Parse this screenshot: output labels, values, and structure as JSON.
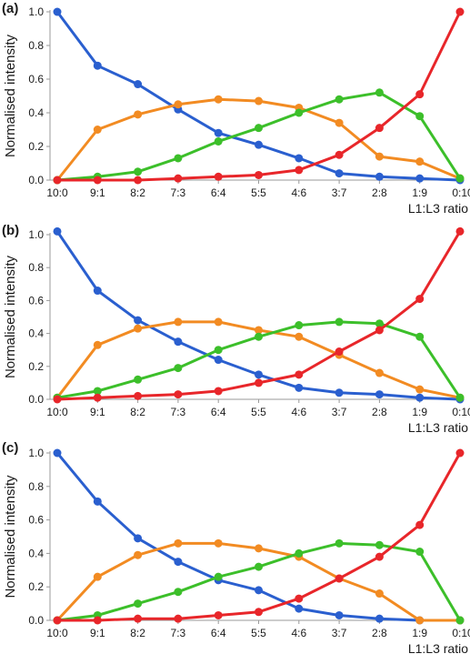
{
  "colors": {
    "series": [
      "#2a5fcf",
      "#f28b22",
      "#3cbf2a",
      "#e8262a"
    ],
    "axis": "#9a9a9a"
  },
  "chart_data": [
    {
      "type": "line",
      "panel_label": "(a)",
      "xlabel": "L1:L3 ratio",
      "ylabel": "Normalised intensity",
      "x": [
        "10:0",
        "9:1",
        "8:2",
        "7:3",
        "6:4",
        "5:5",
        "4:6",
        "3:7",
        "2:8",
        "1:9",
        "0:10"
      ],
      "yticks": [
        "0.0",
        "0.2",
        "0.4",
        "0.6",
        "0.8",
        "1.0"
      ],
      "ylim": [
        0,
        1.0
      ],
      "grid": false,
      "series": [
        {
          "values": [
            1.0,
            0.68,
            0.57,
            0.42,
            0.28,
            0.21,
            0.13,
            0.04,
            0.02,
            0.01,
            0.0
          ]
        },
        {
          "values": [
            0.0,
            0.3,
            0.39,
            0.45,
            0.48,
            0.47,
            0.43,
            0.34,
            0.14,
            0.11,
            0.01
          ]
        },
        {
          "values": [
            0.0,
            0.02,
            0.05,
            0.13,
            0.23,
            0.31,
            0.4,
            0.48,
            0.52,
            0.38,
            0.01
          ]
        },
        {
          "values": [
            0.0,
            0.0,
            0.0,
            0.01,
            0.02,
            0.03,
            0.06,
            0.15,
            0.31,
            0.51,
            1.0
          ]
        }
      ]
    },
    {
      "type": "line",
      "panel_label": "(b)",
      "xlabel": "L1:L3 ratio",
      "ylabel": "Normalised intensity",
      "x": [
        "10:0",
        "9:1",
        "8:2",
        "7:3",
        "6:4",
        "5:5",
        "4:6",
        "3:7",
        "2:8",
        "1:9",
        "0:10"
      ],
      "yticks": [
        "0.0",
        "0.2",
        "0.4",
        "0.6",
        "0.8",
        "1.0"
      ],
      "ylim": [
        0,
        1.0
      ],
      "grid": false,
      "series": [
        {
          "values": [
            1.02,
            0.66,
            0.48,
            0.35,
            0.24,
            0.15,
            0.07,
            0.04,
            0.03,
            0.01,
            0.0
          ]
        },
        {
          "values": [
            0.01,
            0.33,
            0.43,
            0.47,
            0.47,
            0.42,
            0.38,
            0.27,
            0.16,
            0.06,
            0.01
          ]
        },
        {
          "values": [
            0.01,
            0.05,
            0.12,
            0.19,
            0.3,
            0.38,
            0.45,
            0.47,
            0.46,
            0.38,
            0.01
          ]
        },
        {
          "values": [
            0.0,
            0.01,
            0.02,
            0.03,
            0.05,
            0.1,
            0.15,
            0.29,
            0.42,
            0.61,
            1.02
          ]
        }
      ]
    },
    {
      "type": "line",
      "panel_label": "(c)",
      "xlabel": "L1:L3 ratio",
      "ylabel": "Normalised intensity",
      "x": [
        "10:0",
        "9:1",
        "8:2",
        "7:3",
        "6:4",
        "5:5",
        "4:6",
        "3:7",
        "2:8",
        "1:9",
        "0:10"
      ],
      "yticks": [
        "0.0",
        "0.2",
        "0.4",
        "0.6",
        "0.8",
        "1.0"
      ],
      "ylim": [
        0,
        1.0
      ],
      "grid": false,
      "series": [
        {
          "values": [
            1.0,
            0.71,
            0.49,
            0.35,
            0.24,
            0.18,
            0.07,
            0.03,
            0.01,
            0.0,
            0.0
          ]
        },
        {
          "values": [
            0.0,
            0.26,
            0.39,
            0.46,
            0.46,
            0.43,
            0.38,
            0.25,
            0.16,
            0.0,
            0.0
          ]
        },
        {
          "values": [
            0.0,
            0.03,
            0.1,
            0.17,
            0.26,
            0.32,
            0.4,
            0.46,
            0.45,
            0.41,
            0.0
          ]
        },
        {
          "values": [
            0.0,
            0.0,
            0.01,
            0.01,
            0.03,
            0.05,
            0.13,
            0.25,
            0.38,
            0.57,
            1.0
          ]
        }
      ]
    }
  ]
}
